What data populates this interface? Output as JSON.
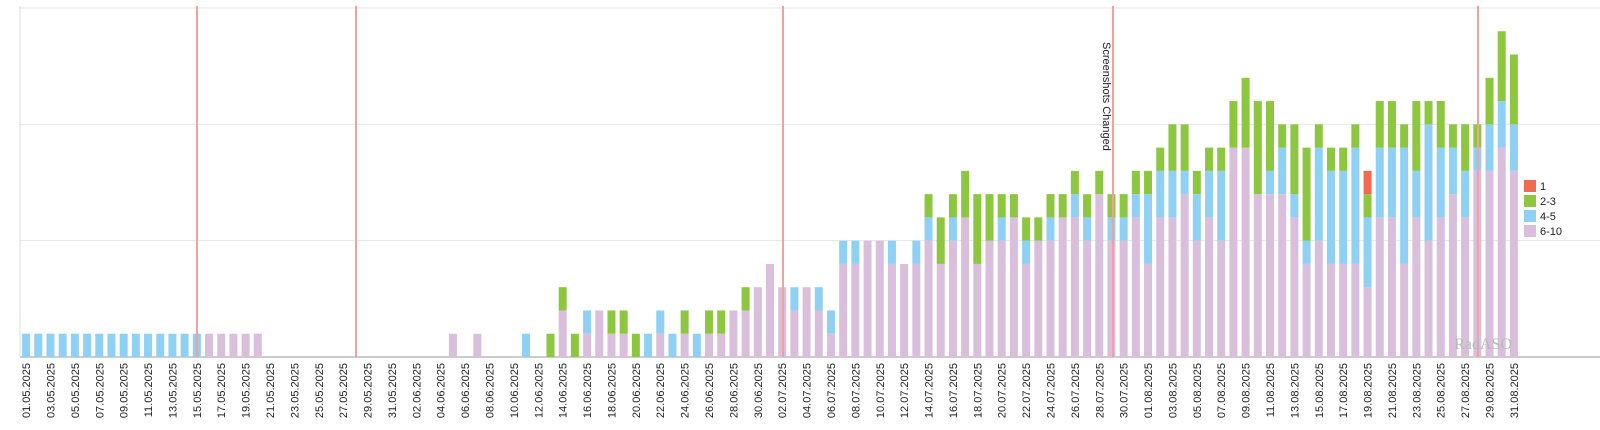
{
  "chart_data": {
    "type": "stacked_bar",
    "categories": [
      "01.05.2025",
      null,
      "03.05.2025",
      null,
      "05.05.2025",
      null,
      "07.05.2025",
      null,
      "09.05.2025",
      null,
      "11.05.2025",
      null,
      "13.05.2025",
      null,
      "15.05.2025",
      null,
      "17.05.2025",
      null,
      "19.05.2025",
      null,
      "21.05.2025",
      null,
      "23.05.2025",
      null,
      "25.05.2025",
      null,
      "27.05.2025",
      null,
      "29.05.2025",
      null,
      "31.05.2025",
      null,
      "02.06.2025",
      null,
      "04.06.2025",
      null,
      "06.06.2025",
      null,
      "08.06.2025",
      null,
      "10.06.2025",
      null,
      "12.06.2025",
      null,
      "14.06.2025",
      null,
      "16.06.2025",
      null,
      "18.06.2025",
      null,
      "20.06.2025",
      null,
      "22.06.2025",
      null,
      "24.06.2025",
      null,
      "26.06.2025",
      null,
      "28.06.2025",
      null,
      "30.06.2025",
      null,
      "02.07.2025",
      null,
      "04.07.2025",
      null,
      "06.07.2025",
      null,
      "08.07.2025",
      null,
      "10.07.2025",
      null,
      "12.07.2025",
      null,
      "14.07.2025",
      null,
      "16.07.2025",
      null,
      "18.07.2025",
      null,
      "20.07.2025",
      null,
      "22.07.2025",
      null,
      "24.07.2025",
      null,
      "26.07.2025",
      null,
      "28.07.2025",
      null,
      "30.07.2025",
      null,
      "01.08.2025",
      null,
      "03.08.2025",
      null,
      "05.08.2025",
      null,
      "07.08.2025",
      null,
      "09.08.2025",
      null,
      "11.08.2025",
      null,
      "13.08.2025",
      null,
      "15.08.2025",
      null,
      "17.08.2025",
      null,
      "19.08.2025",
      null,
      "21.08.2025",
      null,
      "23.08.2025",
      null,
      "25.08.2025",
      null,
      "27.08.2025",
      null,
      "29.08.2025",
      null,
      "31.08.2025"
    ],
    "series": [
      {
        "name": "6-10",
        "color": "#d9bfdc",
        "values": [
          0,
          0,
          0,
          0,
          0,
          0,
          0,
          0,
          0,
          0,
          0,
          0,
          0,
          0,
          0,
          1,
          1,
          1,
          1,
          1,
          0,
          0,
          0,
          0,
          0,
          0,
          0,
          0,
          0,
          0,
          0,
          0,
          0,
          0,
          0,
          1,
          0,
          1,
          0,
          0,
          0,
          0,
          0,
          0,
          2,
          0,
          1,
          2,
          1,
          1,
          0,
          0,
          1,
          0,
          1,
          0,
          1,
          1,
          2,
          2,
          3,
          4,
          3,
          2,
          3,
          2,
          1,
          4,
          4,
          5,
          5,
          4,
          4,
          4,
          5,
          4,
          5,
          6,
          4,
          5,
          5,
          6,
          4,
          5,
          5,
          6,
          6,
          5,
          7,
          5,
          5,
          6,
          4,
          6,
          6,
          7,
          5,
          6,
          5,
          9,
          9,
          7,
          7,
          7,
          6,
          4,
          5,
          4,
          4,
          4,
          3,
          6,
          6,
          4,
          6,
          5,
          6,
          7,
          6,
          8,
          8,
          9,
          8
        ]
      },
      {
        "name": "4-5",
        "color": "#8fd1f5",
        "values": [
          1,
          1,
          1,
          1,
          1,
          1,
          1,
          1,
          1,
          1,
          1,
          1,
          1,
          1,
          1,
          0,
          0,
          0,
          0,
          0,
          0,
          0,
          0,
          0,
          0,
          0,
          0,
          0,
          0,
          0,
          0,
          0,
          0,
          0,
          0,
          0,
          0,
          0,
          0,
          0,
          0,
          1,
          0,
          0,
          0,
          0,
          1,
          0,
          0,
          0,
          0,
          1,
          1,
          1,
          0,
          1,
          0,
          0,
          0,
          0,
          0,
          0,
          0,
          1,
          0,
          1,
          1,
          1,
          1,
          0,
          0,
          1,
          0,
          1,
          1,
          0,
          1,
          0,
          0,
          0,
          1,
          0,
          1,
          0,
          1,
          0,
          1,
          1,
          0,
          1,
          1,
          1,
          3,
          2,
          2,
          1,
          2,
          2,
          3,
          0,
          0,
          0,
          1,
          2,
          1,
          1,
          4,
          4,
          4,
          5,
          3,
          3,
          3,
          5,
          2,
          5,
          3,
          2,
          2,
          1,
          2,
          2,
          2
        ]
      },
      {
        "name": "2-3",
        "color": "#8dc63f",
        "values": [
          0,
          0,
          0,
          0,
          0,
          0,
          0,
          0,
          0,
          0,
          0,
          0,
          0,
          0,
          0,
          0,
          0,
          0,
          0,
          0,
          0,
          0,
          0,
          0,
          0,
          0,
          0,
          0,
          0,
          0,
          0,
          0,
          0,
          0,
          0,
          0,
          0,
          0,
          0,
          0,
          0,
          0,
          0,
          1,
          1,
          1,
          0,
          0,
          1,
          1,
          1,
          0,
          0,
          0,
          1,
          0,
          1,
          1,
          0,
          1,
          0,
          0,
          0,
          0,
          0,
          0,
          0,
          0,
          0,
          0,
          0,
          0,
          0,
          0,
          1,
          2,
          1,
          2,
          3,
          2,
          1,
          1,
          1,
          1,
          1,
          1,
          1,
          1,
          1,
          1,
          1,
          1,
          1,
          1,
          2,
          2,
          1,
          1,
          1,
          2,
          3,
          4,
          3,
          1,
          3,
          4,
          1,
          1,
          1,
          1,
          1,
          2,
          2,
          1,
          3,
          1,
          2,
          1,
          2,
          1,
          2,
          3,
          3
        ]
      },
      {
        "name": "1",
        "color": "#f26a4f",
        "values": [
          0,
          0,
          0,
          0,
          0,
          0,
          0,
          0,
          0,
          0,
          0,
          0,
          0,
          0,
          0,
          0,
          0,
          0,
          0,
          0,
          0,
          0,
          0,
          0,
          0,
          0,
          0,
          0,
          0,
          0,
          0,
          0,
          0,
          0,
          0,
          0,
          0,
          0,
          0,
          0,
          0,
          0,
          0,
          0,
          0,
          0,
          0,
          0,
          0,
          0,
          0,
          0,
          0,
          0,
          0,
          0,
          0,
          0,
          0,
          0,
          0,
          0,
          0,
          0,
          0,
          0,
          0,
          0,
          0,
          0,
          0,
          0,
          0,
          0,
          0,
          0,
          0,
          0,
          0,
          0,
          0,
          0,
          0,
          0,
          0,
          0,
          0,
          0,
          0,
          0,
          0,
          0,
          0,
          0,
          0,
          0,
          0,
          0,
          0,
          0,
          0,
          0,
          0,
          0,
          0,
          0,
          0,
          0,
          0,
          0,
          1,
          0,
          0,
          0,
          0,
          0,
          0,
          0,
          0,
          0,
          0,
          0,
          0
        ]
      }
    ],
    "ylim": [
      0,
      15
    ],
    "yticks": [
      0,
      5,
      10,
      15
    ],
    "grid": true,
    "annotation": "Screenshots Changed",
    "watermark": "RadASO"
  }
}
